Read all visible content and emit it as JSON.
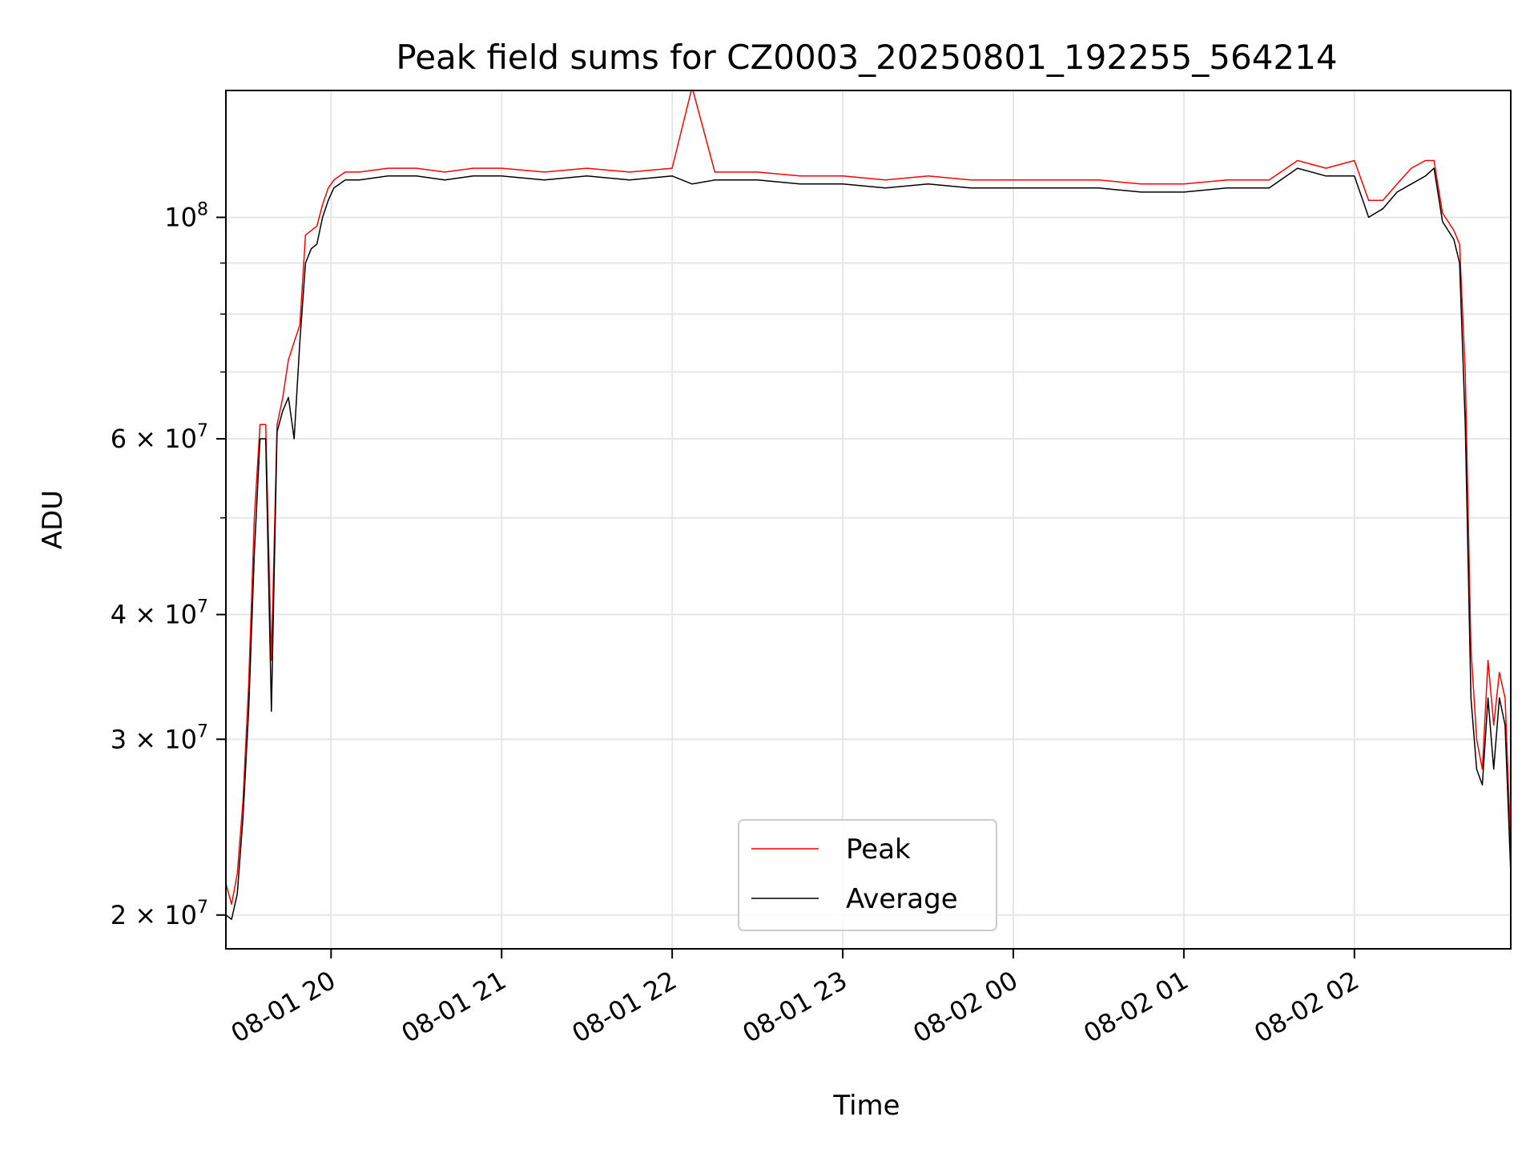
{
  "chart_data": {
    "type": "line",
    "title": "Peak field sums for CZ0003_20250801_192255_564214",
    "xlabel": "Time",
    "ylabel": "ADU",
    "yscale": "log",
    "xlim": [
      "2025-08-01 19:23",
      "2025-08-02 02:55"
    ],
    "ylim": [
      18500000,
      134000000
    ],
    "grid": true,
    "legend": {
      "position": "lower center"
    },
    "x_ticks": [
      {
        "value": "2025-08-01 20:00",
        "label": "08-01 20"
      },
      {
        "value": "2025-08-01 21:00",
        "label": "08-01 21"
      },
      {
        "value": "2025-08-01 22:00",
        "label": "08-01 22"
      },
      {
        "value": "2025-08-01 23:00",
        "label": "08-01 23"
      },
      {
        "value": "2025-08-02 00:00",
        "label": "08-02 00"
      },
      {
        "value": "2025-08-02 01:00",
        "label": "08-02 01"
      },
      {
        "value": "2025-08-02 02:00",
        "label": "08-02 02"
      }
    ],
    "y_ticks": [
      {
        "value": 20000000,
        "mantissa": "2",
        "exponent": "7"
      },
      {
        "value": 30000000,
        "mantissa": "3",
        "exponent": "7"
      },
      {
        "value": 40000000,
        "mantissa": "4",
        "exponent": "7"
      },
      {
        "value": 60000000,
        "mantissa": "6",
        "exponent": "7"
      },
      {
        "value": 100000000,
        "mantissa": "",
        "exponent": "8"
      }
    ],
    "y_minor_ticks": [
      50000000,
      70000000,
      80000000,
      90000000
    ],
    "series": [
      {
        "name": "Peak",
        "color": "#ff0000",
        "x": [
          "2025-08-01 19:23",
          "2025-08-01 19:25",
          "2025-08-01 19:27",
          "2025-08-01 19:29",
          "2025-08-01 19:31",
          "2025-08-01 19:33",
          "2025-08-01 19:35",
          "2025-08-01 19:37",
          "2025-08-01 19:39",
          "2025-08-01 19:41",
          "2025-08-01 19:43",
          "2025-08-01 19:45",
          "2025-08-01 19:47",
          "2025-08-01 19:49",
          "2025-08-01 19:51",
          "2025-08-01 19:53",
          "2025-08-01 19:55",
          "2025-08-01 19:57",
          "2025-08-01 19:59",
          "2025-08-01 20:01",
          "2025-08-01 20:03",
          "2025-08-01 20:05",
          "2025-08-01 20:10",
          "2025-08-01 20:20",
          "2025-08-01 20:30",
          "2025-08-01 20:40",
          "2025-08-01 20:50",
          "2025-08-01 21:00",
          "2025-08-01 21:15",
          "2025-08-01 21:30",
          "2025-08-01 21:45",
          "2025-08-01 22:00",
          "2025-08-01 22:07",
          "2025-08-01 22:15",
          "2025-08-01 22:30",
          "2025-08-01 22:45",
          "2025-08-01 23:00",
          "2025-08-01 23:15",
          "2025-08-01 23:30",
          "2025-08-01 23:45",
          "2025-08-02 00:00",
          "2025-08-02 00:15",
          "2025-08-02 00:30",
          "2025-08-02 00:45",
          "2025-08-02 01:00",
          "2025-08-02 01:15",
          "2025-08-02 01:30",
          "2025-08-02 01:40",
          "2025-08-02 01:50",
          "2025-08-02 02:00",
          "2025-08-02 02:05",
          "2025-08-02 02:10",
          "2025-08-02 02:15",
          "2025-08-02 02:20",
          "2025-08-02 02:25",
          "2025-08-02 02:28",
          "2025-08-02 02:31",
          "2025-08-02 02:33",
          "2025-08-02 02:35",
          "2025-08-02 02:37",
          "2025-08-02 02:39",
          "2025-08-02 02:41",
          "2025-08-02 02:43",
          "2025-08-02 02:45",
          "2025-08-02 02:47",
          "2025-08-02 02:49",
          "2025-08-02 02:51",
          "2025-08-02 02:53",
          "2025-08-02 02:55"
        ],
        "y": [
          21500000,
          20500000,
          22000000,
          26000000,
          34000000,
          50000000,
          62000000,
          62000000,
          36000000,
          62000000,
          66000000,
          72000000,
          75000000,
          78000000,
          96000000,
          97000000,
          98000000,
          103000000,
          107000000,
          109000000,
          110000000,
          111000000,
          111000000,
          112000000,
          112000000,
          111000000,
          112000000,
          112000000,
          111000000,
          112000000,
          111000000,
          112000000,
          135000000,
          111000000,
          111000000,
          110000000,
          110000000,
          109000000,
          110000000,
          109000000,
          109000000,
          109000000,
          109000000,
          108000000,
          108000000,
          109000000,
          109000000,
          114000000,
          112000000,
          114000000,
          104000000,
          104000000,
          108000000,
          112000000,
          114000000,
          114000000,
          101000000,
          99000000,
          97000000,
          94000000,
          70000000,
          37000000,
          30000000,
          28000000,
          36000000,
          31000000,
          35000000,
          33000000,
          23500000
        ],
        "line_width": 1
      },
      {
        "name": "Average",
        "color": "#000000",
        "x": [
          "2025-08-01 19:23",
          "2025-08-01 19:25",
          "2025-08-01 19:27",
          "2025-08-01 19:29",
          "2025-08-01 19:31",
          "2025-08-01 19:33",
          "2025-08-01 19:35",
          "2025-08-01 19:37",
          "2025-08-01 19:39",
          "2025-08-01 19:41",
          "2025-08-01 19:43",
          "2025-08-01 19:45",
          "2025-08-01 19:47",
          "2025-08-01 19:49",
          "2025-08-01 19:51",
          "2025-08-01 19:53",
          "2025-08-01 19:55",
          "2025-08-01 19:57",
          "2025-08-01 19:59",
          "2025-08-01 20:01",
          "2025-08-01 20:03",
          "2025-08-01 20:05",
          "2025-08-01 20:10",
          "2025-08-01 20:20",
          "2025-08-01 20:30",
          "2025-08-01 20:40",
          "2025-08-01 20:50",
          "2025-08-01 21:00",
          "2025-08-01 21:15",
          "2025-08-01 21:30",
          "2025-08-01 21:45",
          "2025-08-01 22:00",
          "2025-08-01 22:07",
          "2025-08-01 22:15",
          "2025-08-01 22:30",
          "2025-08-01 22:45",
          "2025-08-01 23:00",
          "2025-08-01 23:15",
          "2025-08-01 23:30",
          "2025-08-01 23:45",
          "2025-08-02 00:00",
          "2025-08-02 00:15",
          "2025-08-02 00:30",
          "2025-08-02 00:45",
          "2025-08-02 01:00",
          "2025-08-02 01:15",
          "2025-08-02 01:30",
          "2025-08-02 01:40",
          "2025-08-02 01:50",
          "2025-08-02 02:00",
          "2025-08-02 02:05",
          "2025-08-02 02:10",
          "2025-08-02 02:15",
          "2025-08-02 02:20",
          "2025-08-02 02:25",
          "2025-08-02 02:28",
          "2025-08-02 02:31",
          "2025-08-02 02:33",
          "2025-08-02 02:35",
          "2025-08-02 02:37",
          "2025-08-02 02:39",
          "2025-08-02 02:41",
          "2025-08-02 02:43",
          "2025-08-02 02:45",
          "2025-08-02 02:47",
          "2025-08-02 02:49",
          "2025-08-02 02:51",
          "2025-08-02 02:53",
          "2025-08-02 02:55"
        ],
        "y": [
          20000000,
          19800000,
          21000000,
          25000000,
          32000000,
          46000000,
          60000000,
          60000000,
          32000000,
          61000000,
          64000000,
          66000000,
          60000000,
          75000000,
          90000000,
          93000000,
          94000000,
          100000000,
          104000000,
          107000000,
          108000000,
          109000000,
          109000000,
          110000000,
          110000000,
          109000000,
          110000000,
          110000000,
          109000000,
          110000000,
          109000000,
          110000000,
          108000000,
          109000000,
          109000000,
          108000000,
          108000000,
          107000000,
          108000000,
          107000000,
          107000000,
          107000000,
          107000000,
          106000000,
          106000000,
          107000000,
          107000000,
          112000000,
          110000000,
          110000000,
          100000000,
          102000000,
          106000000,
          108000000,
          110000000,
          112000000,
          99000000,
          97000000,
          95000000,
          90000000,
          62000000,
          33000000,
          28000000,
          27000000,
          33000000,
          28000000,
          33000000,
          31000000,
          22000000
        ],
        "line_width": 1
      }
    ]
  }
}
